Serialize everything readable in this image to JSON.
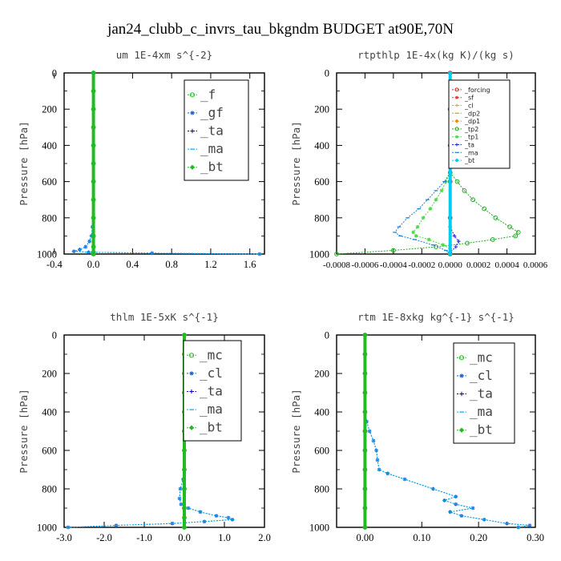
{
  "figure_title": "jan24_clubb_c_invrs_tau_bkgndm  BUDGET at90E,70N",
  "chart_data": [
    {
      "type": "line",
      "title": "um  1E-4xm s^{-2}",
      "ylabel": "Pressure [hPa]",
      "ylim": [
        1000,
        0
      ],
      "xlim": [
        -0.3,
        1.75
      ],
      "yticks": [
        "0",
        "200",
        "400",
        "600",
        "800",
        "1000"
      ],
      "xticks": [
        "-0.4",
        "0.0",
        "0.4",
        "0.8",
        "1.2",
        "1.6"
      ],
      "legend_style": "big",
      "legend": [
        "_f",
        "_gf",
        "_ta",
        "_ma",
        "_bt"
      ],
      "series": [
        {
          "name": "_f",
          "color": "#22bb22",
          "y": [
            0,
            100,
            200,
            300,
            400,
            500,
            600,
            700,
            800,
            900,
            960,
            990,
            1000
          ],
          "x": [
            0,
            0,
            0,
            0,
            0,
            0,
            0,
            0,
            0,
            0,
            0,
            0,
            0
          ]
        },
        {
          "name": "_gf",
          "color": "#1a5fd0",
          "y": [
            0,
            100,
            200,
            300,
            400,
            500,
            600,
            700,
            800,
            850,
            900,
            930,
            960,
            975,
            985,
            990,
            995,
            1000
          ],
          "x": [
            0,
            0,
            0,
            0,
            0,
            0,
            0,
            0,
            0,
            -0.01,
            -0.02,
            -0.04,
            -0.08,
            -0.14,
            -0.2,
            -0.05,
            0.6,
            1.7
          ]
        },
        {
          "name": "_ta",
          "color": "#0000bb",
          "y": [
            0,
            500,
            900,
            1000
          ],
          "x": [
            0,
            0,
            0,
            0
          ]
        },
        {
          "name": "_ma",
          "color": "#00aaee",
          "y": [
            0,
            100,
            200,
            300,
            400,
            500,
            600,
            700,
            800,
            850,
            900,
            930,
            960,
            975,
            985,
            990,
            995,
            1000
          ],
          "x": [
            0,
            0,
            0,
            0,
            0,
            0,
            0,
            0,
            0,
            -0.01,
            -0.02,
            -0.04,
            -0.08,
            -0.14,
            -0.2,
            -0.05,
            0.6,
            1.7
          ]
        },
        {
          "name": "_bt",
          "color": "#22bb22",
          "y": [
            0,
            100,
            200,
            300,
            400,
            500,
            600,
            700,
            800,
            900,
            1000
          ],
          "x": [
            0,
            0,
            0,
            0,
            0,
            0,
            0,
            0,
            0,
            0,
            0
          ]
        }
      ]
    },
    {
      "type": "line",
      "title": "rtpthlp  1E-4x(kg K)/(kg s)",
      "ylabel": "Pressure [hPa]",
      "ylim": [
        1000,
        0
      ],
      "xlim": [
        -0.0008,
        0.0006
      ],
      "yticks": [
        "0",
        "200",
        "400",
        "600",
        "800",
        "1000"
      ],
      "xticks": [
        "-0.0008",
        "-0.0006",
        "-0.0004",
        "-0.0002",
        "0.0000",
        "0.0002",
        "0.0004",
        "0.0006"
      ],
      "legend_style": "small",
      "legend": [
        "_forcing",
        "_sf",
        "_cl",
        "_dp2",
        "_dp1",
        "_tp2",
        "_tp1",
        "_ta",
        "_ma",
        "_bt"
      ],
      "series": [
        {
          "name": "_forcing",
          "color": "#dd2222",
          "y": [
            0,
            200,
            400,
            600,
            800,
            1000
          ],
          "x": [
            0,
            0,
            0,
            0,
            0,
            0
          ]
        },
        {
          "name": "_sf",
          "color": "#ee3333",
          "y": [
            0,
            200,
            400,
            600,
            800,
            1000
          ],
          "x": [
            0,
            0,
            0,
            0,
            0,
            0
          ]
        },
        {
          "name": "_cl",
          "color": "#ff9900",
          "y": [
            0,
            1000
          ],
          "x": [
            0,
            0
          ]
        },
        {
          "name": "_dp2",
          "color": "#ccaa00",
          "y": [
            0,
            1000
          ],
          "x": [
            0,
            0
          ]
        },
        {
          "name": "_dp1",
          "color": "#ff8800",
          "y": [
            0,
            1000
          ],
          "x": [
            0,
            0
          ]
        },
        {
          "name": "_tp2",
          "color": "#22aa22",
          "y": [
            550,
            600,
            650,
            700,
            750,
            800,
            850,
            880,
            900,
            920,
            940,
            960,
            980,
            1000
          ],
          "x": [
            0,
            5e-05,
            0.0001,
            0.00016,
            0.00024,
            0.00032,
            0.00042,
            0.00048,
            0.00046,
            0.0003,
            0.00012,
            -0.0001,
            -0.0004,
            -0.0008
          ]
        },
        {
          "name": "_tp1",
          "color": "#44dd44",
          "y": [
            550,
            600,
            650,
            700,
            750,
            800,
            850,
            880,
            900,
            920,
            950,
            970,
            990,
            1000
          ],
          "x": [
            0,
            -3e-05,
            -6e-05,
            -0.0001,
            -0.00014,
            -0.00019,
            -0.00023,
            -0.00026,
            -0.00024,
            -0.00015,
            -5e-05,
            0,
            0,
            0
          ]
        },
        {
          "name": "_ta",
          "color": "#2222cc",
          "y": [
            850,
            900,
            930,
            960,
            990,
            1000
          ],
          "x": [
            0,
            3e-05,
            6e-05,
            4e-05,
            0,
            0
          ]
        },
        {
          "name": "_ma",
          "color": "#1a7fd0",
          "y": [
            550,
            600,
            650,
            700,
            750,
            800,
            850,
            880,
            900,
            920,
            950,
            980,
            1000
          ],
          "x": [
            0,
            -4e-05,
            -0.0001,
            -0.00016,
            -0.00022,
            -0.0003,
            -0.00036,
            -0.00039,
            -0.00035,
            -0.00025,
            -0.00012,
            -3e-05,
            0
          ]
        },
        {
          "name": "_bt",
          "color": "#00ccee",
          "y": [
            0,
            1000
          ],
          "x": [
            0,
            0
          ]
        }
      ]
    },
    {
      "type": "line",
      "title": "thlm  1E-5xK s^{-1}",
      "ylabel": "Pressure [hPa]",
      "ylim": [
        1000,
        0
      ],
      "xlim": [
        -3.0,
        2.0
      ],
      "yticks": [
        "0",
        "200",
        "400",
        "600",
        "800",
        "1000"
      ],
      "xticks": [
        "-3.0",
        "-2.0",
        "-1.0",
        "0.0",
        "1.0",
        "2.0"
      ],
      "legend_style": "big",
      "legend": [
        "_mc",
        "_cl",
        "_ta",
        "_ma",
        "_bt"
      ],
      "series": [
        {
          "name": "_mc",
          "color": "#22bb22",
          "y": [
            0,
            100,
            200,
            300,
            400,
            500,
            600,
            700,
            800,
            900,
            950,
            1000
          ],
          "x": [
            0,
            0,
            0,
            0,
            0,
            0,
            0,
            0,
            0,
            0,
            0,
            0
          ]
        },
        {
          "name": "_cl",
          "color": "#1a5fd0",
          "y": [
            0,
            100,
            200,
            300,
            400,
            500,
            600,
            700,
            750,
            800,
            850,
            880,
            900,
            920,
            940,
            950,
            960,
            970,
            980,
            990,
            1000
          ],
          "x": [
            0,
            0,
            0,
            0,
            0,
            0,
            0,
            0,
            -0.03,
            -0.1,
            -0.12,
            -0.08,
            0.1,
            0.4,
            0.8,
            1.1,
            1.2,
            0.5,
            -0.3,
            -1.7,
            -2.9
          ]
        },
        {
          "name": "_ta",
          "color": "#0000bb",
          "y": [
            0,
            500,
            1000
          ],
          "x": [
            0,
            0,
            0
          ]
        },
        {
          "name": "_ma",
          "color": "#00aaee",
          "y": [
            0,
            100,
            200,
            300,
            400,
            500,
            600,
            700,
            750,
            800,
            850,
            880,
            900,
            920,
            940,
            950,
            960,
            970,
            980,
            990,
            1000
          ],
          "x": [
            0,
            0,
            0,
            0,
            0,
            0,
            0,
            0,
            -0.03,
            -0.1,
            -0.12,
            -0.08,
            0.1,
            0.4,
            0.8,
            1.1,
            1.2,
            0.5,
            -0.3,
            -1.7,
            -2.9
          ]
        },
        {
          "name": "_bt",
          "color": "#22bb22",
          "y": [
            0,
            100,
            200,
            300,
            400,
            500,
            600,
            700,
            800,
            900,
            1000
          ],
          "x": [
            0,
            0,
            0,
            0,
            0,
            0,
            0,
            0,
            0,
            0,
            0
          ]
        }
      ]
    },
    {
      "type": "line",
      "title": "rtm  1E-8xkg kg^{-1} s^{-1}",
      "ylabel": "Pressure [hPa]",
      "ylim": [
        1000,
        0
      ],
      "xlim": [
        -0.05,
        0.3
      ],
      "yticks": [
        "0",
        "200",
        "400",
        "600",
        "800",
        "1000"
      ],
      "xticks": [
        "0.00",
        "0.10",
        "0.20",
        "0.30"
      ],
      "legend_style": "big",
      "legend": [
        "_mc",
        "_cl",
        "_ta",
        "_ma",
        "_bt"
      ],
      "series": [
        {
          "name": "_mc",
          "color": "#22bb22",
          "y": [
            0,
            100,
            200,
            300,
            400,
            500,
            600,
            700,
            800,
            900,
            1000
          ],
          "x": [
            0,
            0,
            0,
            0,
            0,
            0,
            0,
            0,
            0,
            0,
            0
          ]
        },
        {
          "name": "_cl",
          "color": "#1a5fd0",
          "y": [
            0,
            100,
            200,
            300,
            400,
            450,
            500,
            550,
            600,
            650,
            700,
            720,
            750,
            800,
            840,
            860,
            880,
            900,
            920,
            940,
            960,
            980,
            990,
            1000
          ],
          "x": [
            0,
            0,
            0,
            0,
            0,
            0.003,
            0.008,
            0.015,
            0.02,
            0.022,
            0.025,
            0.04,
            0.07,
            0.12,
            0.16,
            0.14,
            0.16,
            0.19,
            0.15,
            0.17,
            0.21,
            0.25,
            0.29,
            0.27
          ]
        },
        {
          "name": "_ta",
          "color": "#0000bb",
          "y": [
            0,
            500,
            1000
          ],
          "x": [
            0,
            0,
            0
          ]
        },
        {
          "name": "_ma",
          "color": "#00aaee",
          "y": [
            0,
            100,
            200,
            300,
            400,
            450,
            500,
            550,
            600,
            650,
            700,
            720,
            750,
            800,
            840,
            860,
            880,
            900,
            920,
            940,
            960,
            980,
            990,
            1000
          ],
          "x": [
            0,
            0,
            0,
            0,
            0,
            0.003,
            0.008,
            0.015,
            0.02,
            0.022,
            0.025,
            0.04,
            0.07,
            0.12,
            0.16,
            0.14,
            0.16,
            0.19,
            0.15,
            0.17,
            0.21,
            0.25,
            0.29,
            0.27
          ]
        },
        {
          "name": "_bt",
          "color": "#22bb22",
          "y": [
            0,
            100,
            200,
            300,
            400,
            500,
            600,
            700,
            800,
            900,
            1000
          ],
          "x": [
            0,
            0,
            0,
            0,
            0,
            0,
            0,
            0,
            0,
            0,
            0
          ]
        }
      ]
    }
  ]
}
